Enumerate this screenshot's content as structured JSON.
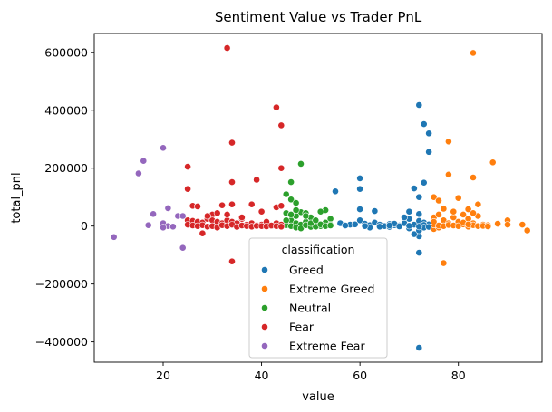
{
  "chart_data": {
    "type": "scatter",
    "title": "Sentiment Value vs Trader PnL",
    "xlabel": "value",
    "ylabel": "total_pnl",
    "xlim": [
      6,
      97
    ],
    "ylim": [
      -470000,
      665000
    ],
    "xticks": [
      20,
      40,
      60,
      80
    ],
    "yticks": [
      -400000,
      -200000,
      0,
      200000,
      400000,
      600000
    ],
    "xtick_labels": [
      "20",
      "40",
      "60",
      "80"
    ],
    "ytick_labels": [
      "−400000",
      "−200000",
      "0",
      "200000",
      "400000",
      "600000"
    ],
    "grid": false,
    "legend": {
      "title": "classification",
      "placement": "lower-center"
    },
    "series": [
      {
        "name": "Greed",
        "color": "#1f77b4",
        "points": [
          [
            72,
            418000
          ],
          [
            73,
            352000
          ],
          [
            74,
            320000
          ],
          [
            74,
            256000
          ],
          [
            73,
            150000
          ],
          [
            72,
            100000
          ],
          [
            71,
            130000
          ],
          [
            60,
            165000
          ],
          [
            60,
            128000
          ],
          [
            55,
            120000
          ],
          [
            60,
            58000
          ],
          [
            63,
            52000
          ],
          [
            70,
            50000
          ],
          [
            72,
            42000
          ],
          [
            72,
            -420000
          ],
          [
            72,
            -92000
          ],
          [
            72,
            -35000
          ],
          [
            71,
            -28000
          ],
          [
            72,
            -15000
          ],
          [
            56,
            10000
          ],
          [
            58,
            5000
          ],
          [
            60,
            20000
          ],
          [
            61,
            8000
          ],
          [
            62,
            3000
          ],
          [
            63,
            12000
          ],
          [
            64,
            5000
          ],
          [
            65,
            0
          ],
          [
            66,
            7000
          ],
          [
            67,
            3000
          ],
          [
            68,
            2000
          ],
          [
            69,
            10000
          ],
          [
            70,
            25000
          ],
          [
            71,
            5000
          ],
          [
            72,
            18000
          ],
          [
            73,
            12000
          ],
          [
            74,
            6000
          ],
          [
            69,
            30000
          ],
          [
            73,
            4000
          ],
          [
            62,
            -5000
          ],
          [
            66,
            -3000
          ],
          [
            67,
            8000
          ],
          [
            70,
            -8000
          ],
          [
            73,
            -5000
          ],
          [
            57,
            2000
          ],
          [
            59,
            6000
          ],
          [
            61,
            0
          ],
          [
            64,
            -2000
          ],
          [
            66,
            2000
          ],
          [
            68,
            -1000
          ],
          [
            70,
            1000
          ],
          [
            72,
            -2000
          ],
          [
            74,
            -3000
          ]
        ]
      },
      {
        "name": "Extreme Greed",
        "color": "#ff7f0e",
        "points": [
          [
            83,
            598000
          ],
          [
            78,
            292000
          ],
          [
            87,
            220000
          ],
          [
            78,
            178000
          ],
          [
            83,
            168000
          ],
          [
            80,
            97000
          ],
          [
            75,
            100000
          ],
          [
            76,
            88000
          ],
          [
            82,
            58000
          ],
          [
            84,
            75000
          ],
          [
            77,
            -128000
          ],
          [
            75,
            -10000
          ],
          [
            76,
            -5000
          ],
          [
            93,
            5000
          ],
          [
            94,
            -15000
          ],
          [
            90,
            20000
          ],
          [
            90,
            5000
          ],
          [
            75,
            30000
          ],
          [
            76,
            40000
          ],
          [
            77,
            20000
          ],
          [
            78,
            10000
          ],
          [
            79,
            30000
          ],
          [
            80,
            15000
          ],
          [
            81,
            40000
          ],
          [
            82,
            25000
          ],
          [
            83,
            10000
          ],
          [
            84,
            35000
          ],
          [
            85,
            5000
          ],
          [
            86,
            3000
          ],
          [
            88,
            8000
          ],
          [
            75,
            5000
          ],
          [
            76,
            2000
          ],
          [
            77,
            0
          ],
          [
            78,
            4000
          ],
          [
            79,
            2000
          ],
          [
            80,
            0
          ],
          [
            81,
            6000
          ],
          [
            82,
            -2000
          ],
          [
            83,
            3000
          ],
          [
            84,
            0
          ],
          [
            85,
            1000
          ],
          [
            86,
            -1000
          ],
          [
            77,
            60000
          ],
          [
            79,
            50000
          ],
          [
            81,
            12000
          ],
          [
            83,
            45000
          ],
          [
            75,
            15000
          ],
          [
            82,
            6000
          ]
        ]
      },
      {
        "name": "Neutral",
        "color": "#2ca02c",
        "points": [
          [
            48,
            215000
          ],
          [
            46,
            152000
          ],
          [
            45,
            110000
          ],
          [
            46,
            92000
          ],
          [
            47,
            80000
          ],
          [
            48,
            48000
          ],
          [
            47,
            35000
          ],
          [
            45,
            45000
          ],
          [
            49,
            45000
          ],
          [
            50,
            30000
          ],
          [
            53,
            55000
          ],
          [
            52,
            50000
          ],
          [
            54,
            25000
          ],
          [
            46,
            20000
          ],
          [
            47,
            10000
          ],
          [
            48,
            5000
          ],
          [
            49,
            15000
          ],
          [
            50,
            2000
          ],
          [
            51,
            8000
          ],
          [
            52,
            0
          ],
          [
            53,
            12000
          ],
          [
            54,
            5000
          ],
          [
            45,
            3000
          ],
          [
            46,
            0
          ],
          [
            47,
            -5000
          ],
          [
            48,
            -8000
          ],
          [
            49,
            3000
          ],
          [
            50,
            -3000
          ],
          [
            51,
            -2000
          ],
          [
            52,
            6000
          ],
          [
            53,
            0
          ],
          [
            54,
            2000
          ],
          [
            45,
            20000
          ],
          [
            46,
            40000
          ],
          [
            47,
            55000
          ],
          [
            49,
            35000
          ],
          [
            50,
            10000
          ],
          [
            51,
            20000
          ]
        ]
      },
      {
        "name": "Fear",
        "color": "#d62728",
        "points": [
          [
            33,
            615000
          ],
          [
            43,
            410000
          ],
          [
            44,
            348000
          ],
          [
            34,
            288000
          ],
          [
            44,
            200000
          ],
          [
            25,
            205000
          ],
          [
            39,
            160000
          ],
          [
            34,
            152000
          ],
          [
            25,
            128000
          ],
          [
            43,
            65000
          ],
          [
            44,
            70000
          ],
          [
            38,
            75000
          ],
          [
            34,
            75000
          ],
          [
            32,
            72000
          ],
          [
            26,
            70000
          ],
          [
            27,
            68000
          ],
          [
            30,
            40000
          ],
          [
            31,
            45000
          ],
          [
            34,
            -122000
          ],
          [
            28,
            -25000
          ],
          [
            25,
            20000
          ],
          [
            26,
            18000
          ],
          [
            27,
            15000
          ],
          [
            28,
            12000
          ],
          [
            29,
            25000
          ],
          [
            30,
            20000
          ],
          [
            31,
            15000
          ],
          [
            32,
            10000
          ],
          [
            33,
            20000
          ],
          [
            34,
            15000
          ],
          [
            35,
            10000
          ],
          [
            36,
            25000
          ],
          [
            37,
            5000
          ],
          [
            38,
            10000
          ],
          [
            39,
            3000
          ],
          [
            40,
            5000
          ],
          [
            41,
            15000
          ],
          [
            42,
            0
          ],
          [
            43,
            10000
          ],
          [
            44,
            5000
          ],
          [
            25,
            5000
          ],
          [
            26,
            2000
          ],
          [
            27,
            0
          ],
          [
            28,
            3000
          ],
          [
            29,
            -2000
          ],
          [
            30,
            0
          ],
          [
            31,
            -5000
          ],
          [
            32,
            3000
          ],
          [
            33,
            0
          ],
          [
            34,
            5000
          ],
          [
            35,
            -3000
          ],
          [
            36,
            2000
          ],
          [
            37,
            0
          ],
          [
            38,
            -2000
          ],
          [
            39,
            1000
          ],
          [
            40,
            0
          ],
          [
            41,
            -1000
          ],
          [
            42,
            2000
          ],
          [
            43,
            0
          ],
          [
            44,
            -2000
          ],
          [
            29,
            35000
          ],
          [
            33,
            40000
          ],
          [
            36,
            30000
          ],
          [
            40,
            50000
          ]
        ]
      },
      {
        "name": "Extreme Fear",
        "color": "#9467bd",
        "points": [
          [
            20,
            270000
          ],
          [
            16,
            225000
          ],
          [
            15,
            182000
          ],
          [
            21,
            62000
          ],
          [
            18,
            42000
          ],
          [
            23,
            35000
          ],
          [
            24,
            35000
          ],
          [
            10,
            -38000
          ],
          [
            24,
            -75000
          ],
          [
            20,
            10000
          ],
          [
            17,
            3000
          ],
          [
            21,
            0
          ],
          [
            22,
            -2000
          ],
          [
            20,
            -5000
          ]
        ]
      }
    ]
  }
}
